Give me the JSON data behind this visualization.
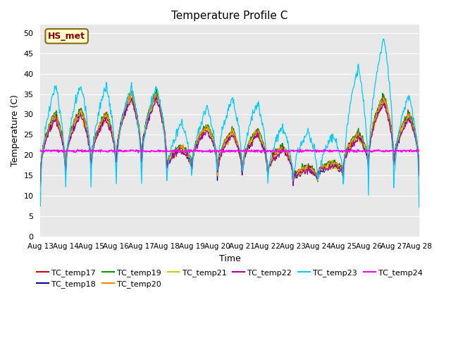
{
  "title": "Temperature Profile C",
  "xlabel": "Time",
  "ylabel": "Temperature (C)",
  "ylim": [
    0,
    52
  ],
  "yticks": [
    0,
    5,
    10,
    15,
    20,
    25,
    30,
    35,
    40,
    45,
    50
  ],
  "annotation": "HS_met",
  "series_colors": {
    "TC_temp17": "#cc0000",
    "TC_temp18": "#000099",
    "TC_temp19": "#009900",
    "TC_temp20": "#ff8800",
    "TC_temp21": "#cccc00",
    "TC_temp22": "#aa00aa",
    "TC_temp23": "#00ccff",
    "TC_temp24": "#ff00ff"
  },
  "background_color": "#e8e8e8",
  "grid_color": "white",
  "date_labels": [
    "Aug 13",
    "Aug 14",
    "Aug 15",
    "Aug 16",
    "Aug 17",
    "Aug 18",
    "Aug 19",
    "Aug 20",
    "Aug 21",
    "Aug 22",
    "Aug 23",
    "Aug 24",
    "Aug 25",
    "Aug 26",
    "Aug 27",
    "Aug 28"
  ]
}
